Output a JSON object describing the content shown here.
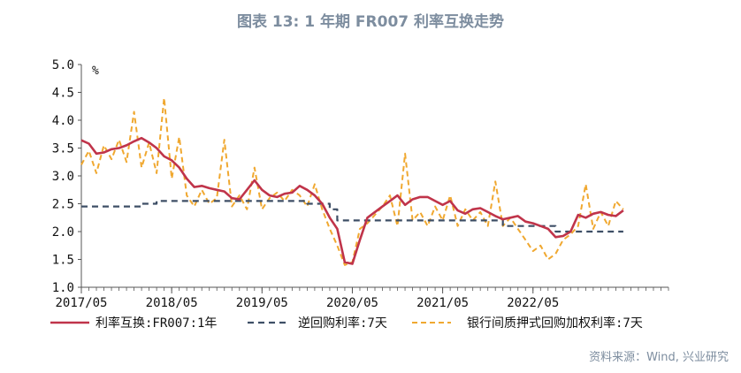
{
  "title": "图表 13: 1 年期 FR007 利率互换走势",
  "unit": "%",
  "source": "资料来源：Wind, 兴业研究",
  "colors": {
    "irs": "#c0344a",
    "repo": "#3e4f66",
    "interbank": "#f0a830",
    "axis": "#555555"
  },
  "chart_data": {
    "type": "line",
    "title": "图表 13: 1 年期 FR007 利率互换走势",
    "xlabel": "",
    "ylabel": "%",
    "xlim": [
      "2017/05",
      "2023/11"
    ],
    "ylim": [
      1.0,
      5.0
    ],
    "y_ticks": [
      "5.0",
      "4.5",
      "4.0",
      "3.5",
      "3.0",
      "2.5",
      "2.0",
      "1.5",
      "1.0"
    ],
    "x_ticks": [
      "2017/05",
      "2018/05",
      "2019/05",
      "2020/05",
      "2021/05",
      "2022/05"
    ],
    "grid": false,
    "legend_position": "bottom",
    "series": [
      {
        "name": "利率互换:FR007:1年",
        "style": "solid",
        "color": "#c0344a",
        "points": [
          [
            "2017/05",
            3.64
          ],
          [
            "2017/06",
            3.58
          ],
          [
            "2017/07",
            3.4
          ],
          [
            "2017/08",
            3.42
          ],
          [
            "2017/09",
            3.48
          ],
          [
            "2017/10",
            3.5
          ],
          [
            "2017/11",
            3.55
          ],
          [
            "2017/12",
            3.62
          ],
          [
            "2018/01",
            3.68
          ],
          [
            "2018/02",
            3.6
          ],
          [
            "2018/03",
            3.5
          ],
          [
            "2018/04",
            3.35
          ],
          [
            "2018/05",
            3.28
          ],
          [
            "2018/06",
            3.15
          ],
          [
            "2018/07",
            2.95
          ],
          [
            "2018/08",
            2.8
          ],
          [
            "2018/09",
            2.82
          ],
          [
            "2018/10",
            2.78
          ],
          [
            "2018/11",
            2.75
          ],
          [
            "2018/12",
            2.72
          ],
          [
            "2019/01",
            2.6
          ],
          [
            "2019/02",
            2.58
          ],
          [
            "2019/03",
            2.75
          ],
          [
            "2019/04",
            2.92
          ],
          [
            "2019/05",
            2.75
          ],
          [
            "2019/06",
            2.65
          ],
          [
            "2019/07",
            2.62
          ],
          [
            "2019/08",
            2.68
          ],
          [
            "2019/09",
            2.7
          ],
          [
            "2019/10",
            2.82
          ],
          [
            "2019/11",
            2.75
          ],
          [
            "2019/12",
            2.65
          ],
          [
            "2020/01",
            2.5
          ],
          [
            "2020/02",
            2.25
          ],
          [
            "2020/03",
            2.05
          ],
          [
            "2020/04",
            1.45
          ],
          [
            "2020/05",
            1.42
          ],
          [
            "2020/06",
            1.85
          ],
          [
            "2020/07",
            2.25
          ],
          [
            "2020/08",
            2.35
          ],
          [
            "2020/09",
            2.45
          ],
          [
            "2020/10",
            2.55
          ],
          [
            "2020/11",
            2.65
          ],
          [
            "2020/12",
            2.48
          ],
          [
            "2021/01",
            2.58
          ],
          [
            "2021/02",
            2.62
          ],
          [
            "2021/03",
            2.62
          ],
          [
            "2021/04",
            2.55
          ],
          [
            "2021/05",
            2.48
          ],
          [
            "2021/06",
            2.55
          ],
          [
            "2021/07",
            2.38
          ],
          [
            "2021/08",
            2.32
          ],
          [
            "2021/09",
            2.4
          ],
          [
            "2021/10",
            2.42
          ],
          [
            "2021/11",
            2.35
          ],
          [
            "2021/12",
            2.28
          ],
          [
            "2022/01",
            2.22
          ],
          [
            "2022/02",
            2.25
          ],
          [
            "2022/03",
            2.28
          ],
          [
            "2022/04",
            2.18
          ],
          [
            "2022/05",
            2.15
          ],
          [
            "2022/06",
            2.1
          ],
          [
            "2022/07",
            2.05
          ],
          [
            "2022/08",
            1.9
          ],
          [
            "2022/09",
            1.92
          ],
          [
            "2022/10",
            2.0
          ],
          [
            "2022/11",
            2.3
          ],
          [
            "2022/12",
            2.25
          ],
          [
            "2023/01",
            2.32
          ],
          [
            "2023/02",
            2.35
          ],
          [
            "2023/03",
            2.3
          ],
          [
            "2023/04",
            2.28
          ],
          [
            "2023/05",
            2.38
          ]
        ]
      },
      {
        "name": "逆回购利率:7天",
        "style": "dashed",
        "color": "#3e4f66",
        "points": [
          [
            "2017/05",
            2.45
          ],
          [
            "2018/01",
            2.45
          ],
          [
            "2018/01",
            2.5
          ],
          [
            "2018/03",
            2.5
          ],
          [
            "2018/03",
            2.55
          ],
          [
            "2019/11",
            2.55
          ],
          [
            "2019/11",
            2.5
          ],
          [
            "2020/02",
            2.5
          ],
          [
            "2020/02",
            2.4
          ],
          [
            "2020/03",
            2.4
          ],
          [
            "2020/03",
            2.2
          ],
          [
            "2022/01",
            2.2
          ],
          [
            "2022/01",
            2.1
          ],
          [
            "2022/08",
            2.1
          ],
          [
            "2022/08",
            2.0
          ],
          [
            "2023/05",
            2.0
          ]
        ]
      },
      {
        "name": "银行间质押式回购加权利率:7天",
        "style": "dashed",
        "color": "#f0a830",
        "points": [
          [
            "2017/05",
            3.2
          ],
          [
            "2017/06",
            3.45
          ],
          [
            "2017/07",
            3.05
          ],
          [
            "2017/08",
            3.55
          ],
          [
            "2017/09",
            3.3
          ],
          [
            "2017/10",
            3.65
          ],
          [
            "2017/11",
            3.25
          ],
          [
            "2017/12",
            4.15
          ],
          [
            "2018/01",
            3.15
          ],
          [
            "2018/02",
            3.6
          ],
          [
            "2018/03",
            3.05
          ],
          [
            "2018/04",
            4.4
          ],
          [
            "2018/05",
            2.95
          ],
          [
            "2018/06",
            3.7
          ],
          [
            "2018/07",
            2.65
          ],
          [
            "2018/08",
            2.45
          ],
          [
            "2018/09",
            2.75
          ],
          [
            "2018/10",
            2.5
          ],
          [
            "2018/11",
            2.6
          ],
          [
            "2018/12",
            3.65
          ],
          [
            "2019/01",
            2.45
          ],
          [
            "2019/02",
            2.65
          ],
          [
            "2019/03",
            2.4
          ],
          [
            "2019/04",
            3.15
          ],
          [
            "2019/05",
            2.4
          ],
          [
            "2019/06",
            2.6
          ],
          [
            "2019/07",
            2.7
          ],
          [
            "2019/08",
            2.55
          ],
          [
            "2019/09",
            2.75
          ],
          [
            "2019/10",
            2.65
          ],
          [
            "2019/11",
            2.45
          ],
          [
            "2019/12",
            2.85
          ],
          [
            "2020/01",
            2.4
          ],
          [
            "2020/02",
            2.05
          ],
          [
            "2020/03",
            1.75
          ],
          [
            "2020/04",
            1.4
          ],
          [
            "2020/05",
            1.45
          ],
          [
            "2020/06",
            2.05
          ],
          [
            "2020/07",
            2.15
          ],
          [
            "2020/08",
            2.3
          ],
          [
            "2020/09",
            2.45
          ],
          [
            "2020/10",
            2.65
          ],
          [
            "2020/11",
            2.1
          ],
          [
            "2020/12",
            3.4
          ],
          [
            "2021/01",
            2.2
          ],
          [
            "2021/02",
            2.35
          ],
          [
            "2021/03",
            2.1
          ],
          [
            "2021/04",
            2.45
          ],
          [
            "2021/05",
            2.2
          ],
          [
            "2021/06",
            2.65
          ],
          [
            "2021/07",
            2.1
          ],
          [
            "2021/08",
            2.4
          ],
          [
            "2021/09",
            2.2
          ],
          [
            "2021/10",
            2.35
          ],
          [
            "2021/11",
            2.1
          ],
          [
            "2021/12",
            2.9
          ],
          [
            "2022/01",
            2.1
          ],
          [
            "2022/02",
            2.25
          ],
          [
            "2022/03",
            2.05
          ],
          [
            "2022/04",
            1.85
          ],
          [
            "2022/05",
            1.65
          ],
          [
            "2022/06",
            1.75
          ],
          [
            "2022/07",
            1.5
          ],
          [
            "2022/08",
            1.6
          ],
          [
            "2022/09",
            1.85
          ],
          [
            "2022/10",
            1.95
          ],
          [
            "2022/11",
            2.1
          ],
          [
            "2022/12",
            2.85
          ],
          [
            "2023/01",
            2.05
          ],
          [
            "2023/02",
            2.35
          ],
          [
            "2023/03",
            2.1
          ],
          [
            "2023/04",
            2.55
          ],
          [
            "2023/05",
            2.4
          ]
        ]
      }
    ]
  }
}
